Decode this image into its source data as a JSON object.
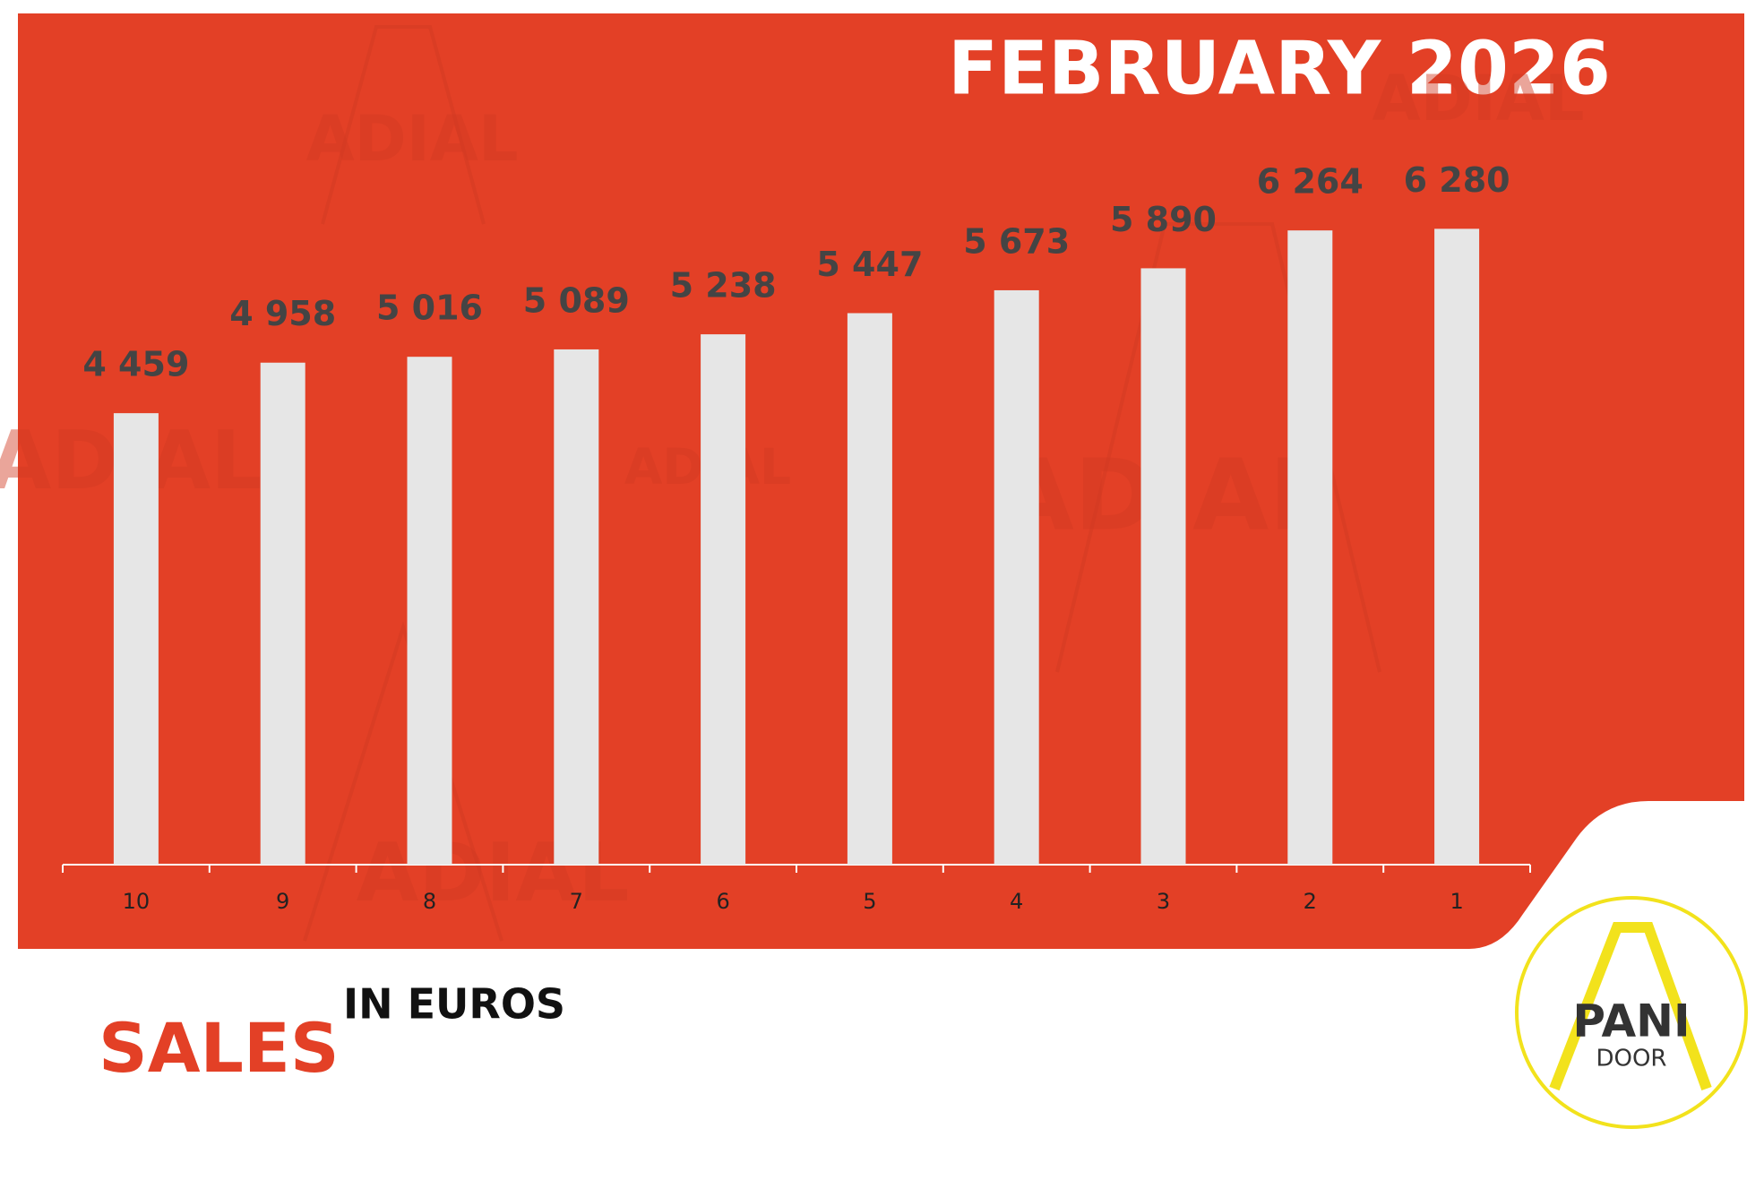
{
  "chart_data": {
    "type": "bar",
    "title": "FEBRUARY 2026",
    "subtitle": "SALES",
    "unit_label": "IN EUROS",
    "watermark": "ADIAL",
    "logo": {
      "top": "PANI",
      "bottom": "DOOR"
    },
    "categories": [
      "10",
      "9",
      "8",
      "7",
      "6",
      "5",
      "4",
      "3",
      "2",
      "1"
    ],
    "values": [
      4459,
      4958,
      5016,
      5089,
      5238,
      5447,
      5673,
      5890,
      6264,
      6280
    ],
    "value_labels": [
      "4 459",
      "4 958",
      "5 016",
      "5 089",
      "5 238",
      "5 447",
      "5 673",
      "5 890",
      "6 264",
      "6 280"
    ],
    "color": "#e6e6e6",
    "ylim": [
      0,
      7000
    ]
  }
}
